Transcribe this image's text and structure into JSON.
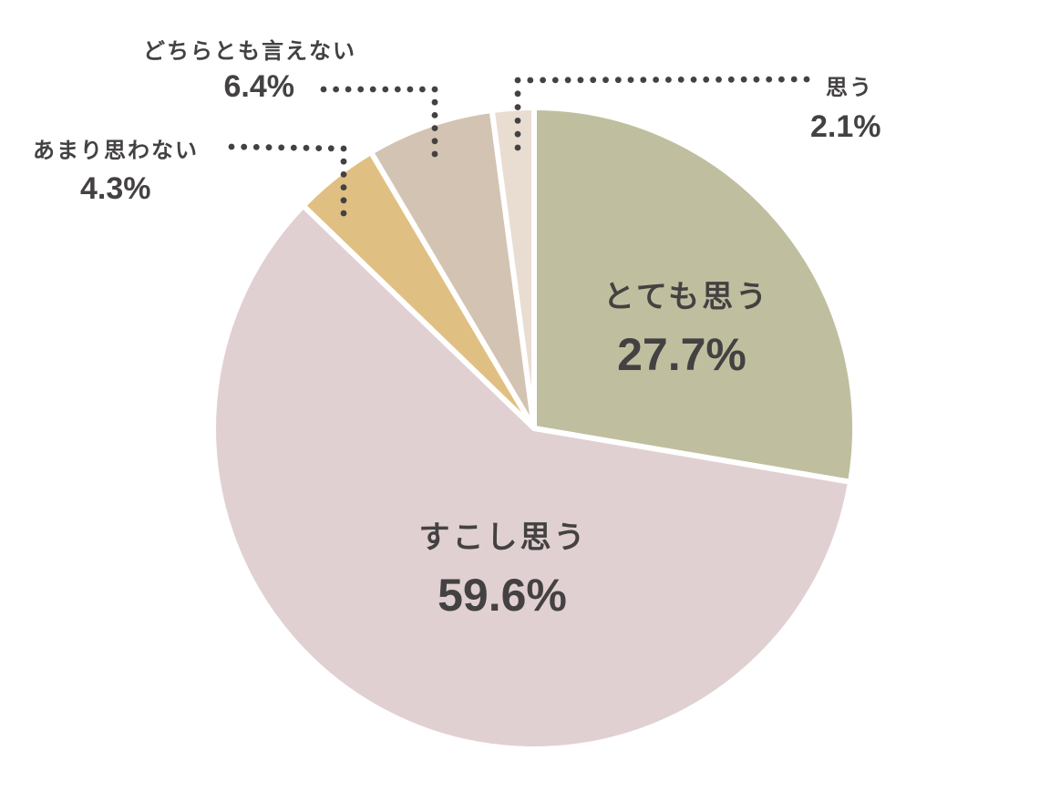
{
  "chart_data": {
    "type": "pie",
    "title": "",
    "start_angle": "12 o'clock",
    "direction": "clockwise",
    "categories": [
      "とても思う",
      "すこし思う",
      "あまり思わない",
      "どちらとも言えない",
      "思う"
    ],
    "values": [
      27.7,
      59.6,
      4.3,
      6.4,
      2.1
    ],
    "unit": "%",
    "colors": [
      "#bfbf9f",
      "#e1d0d2",
      "#e0c082",
      "#d3c3b2",
      "#e9ddd2"
    ],
    "slices": [
      {
        "label": "とても思う",
        "value": 27.7,
        "display": "27.7%",
        "color": "#bfbf9f",
        "label_position": "inside"
      },
      {
        "label": "すこし思う",
        "value": 59.6,
        "display": "59.6%",
        "color": "#e1d0d2",
        "label_position": "inside"
      },
      {
        "label": "あまり思わない",
        "value": 4.3,
        "display": "4.3%",
        "color": "#e0c082",
        "label_position": "outside-left"
      },
      {
        "label": "どちらとも言えない",
        "value": 6.4,
        "display": "6.4%",
        "color": "#d3c3b2",
        "label_position": "outside-top-left"
      },
      {
        "label": "思う",
        "value": 2.1,
        "display": "2.1%",
        "color": "#e9ddd2",
        "label_position": "outside-top-right"
      }
    ],
    "legend": "none (direct labels with dotted leader lines)",
    "text_color": "#444142",
    "leader_line_color": "#444142",
    "separator_color": "#ffffff"
  }
}
